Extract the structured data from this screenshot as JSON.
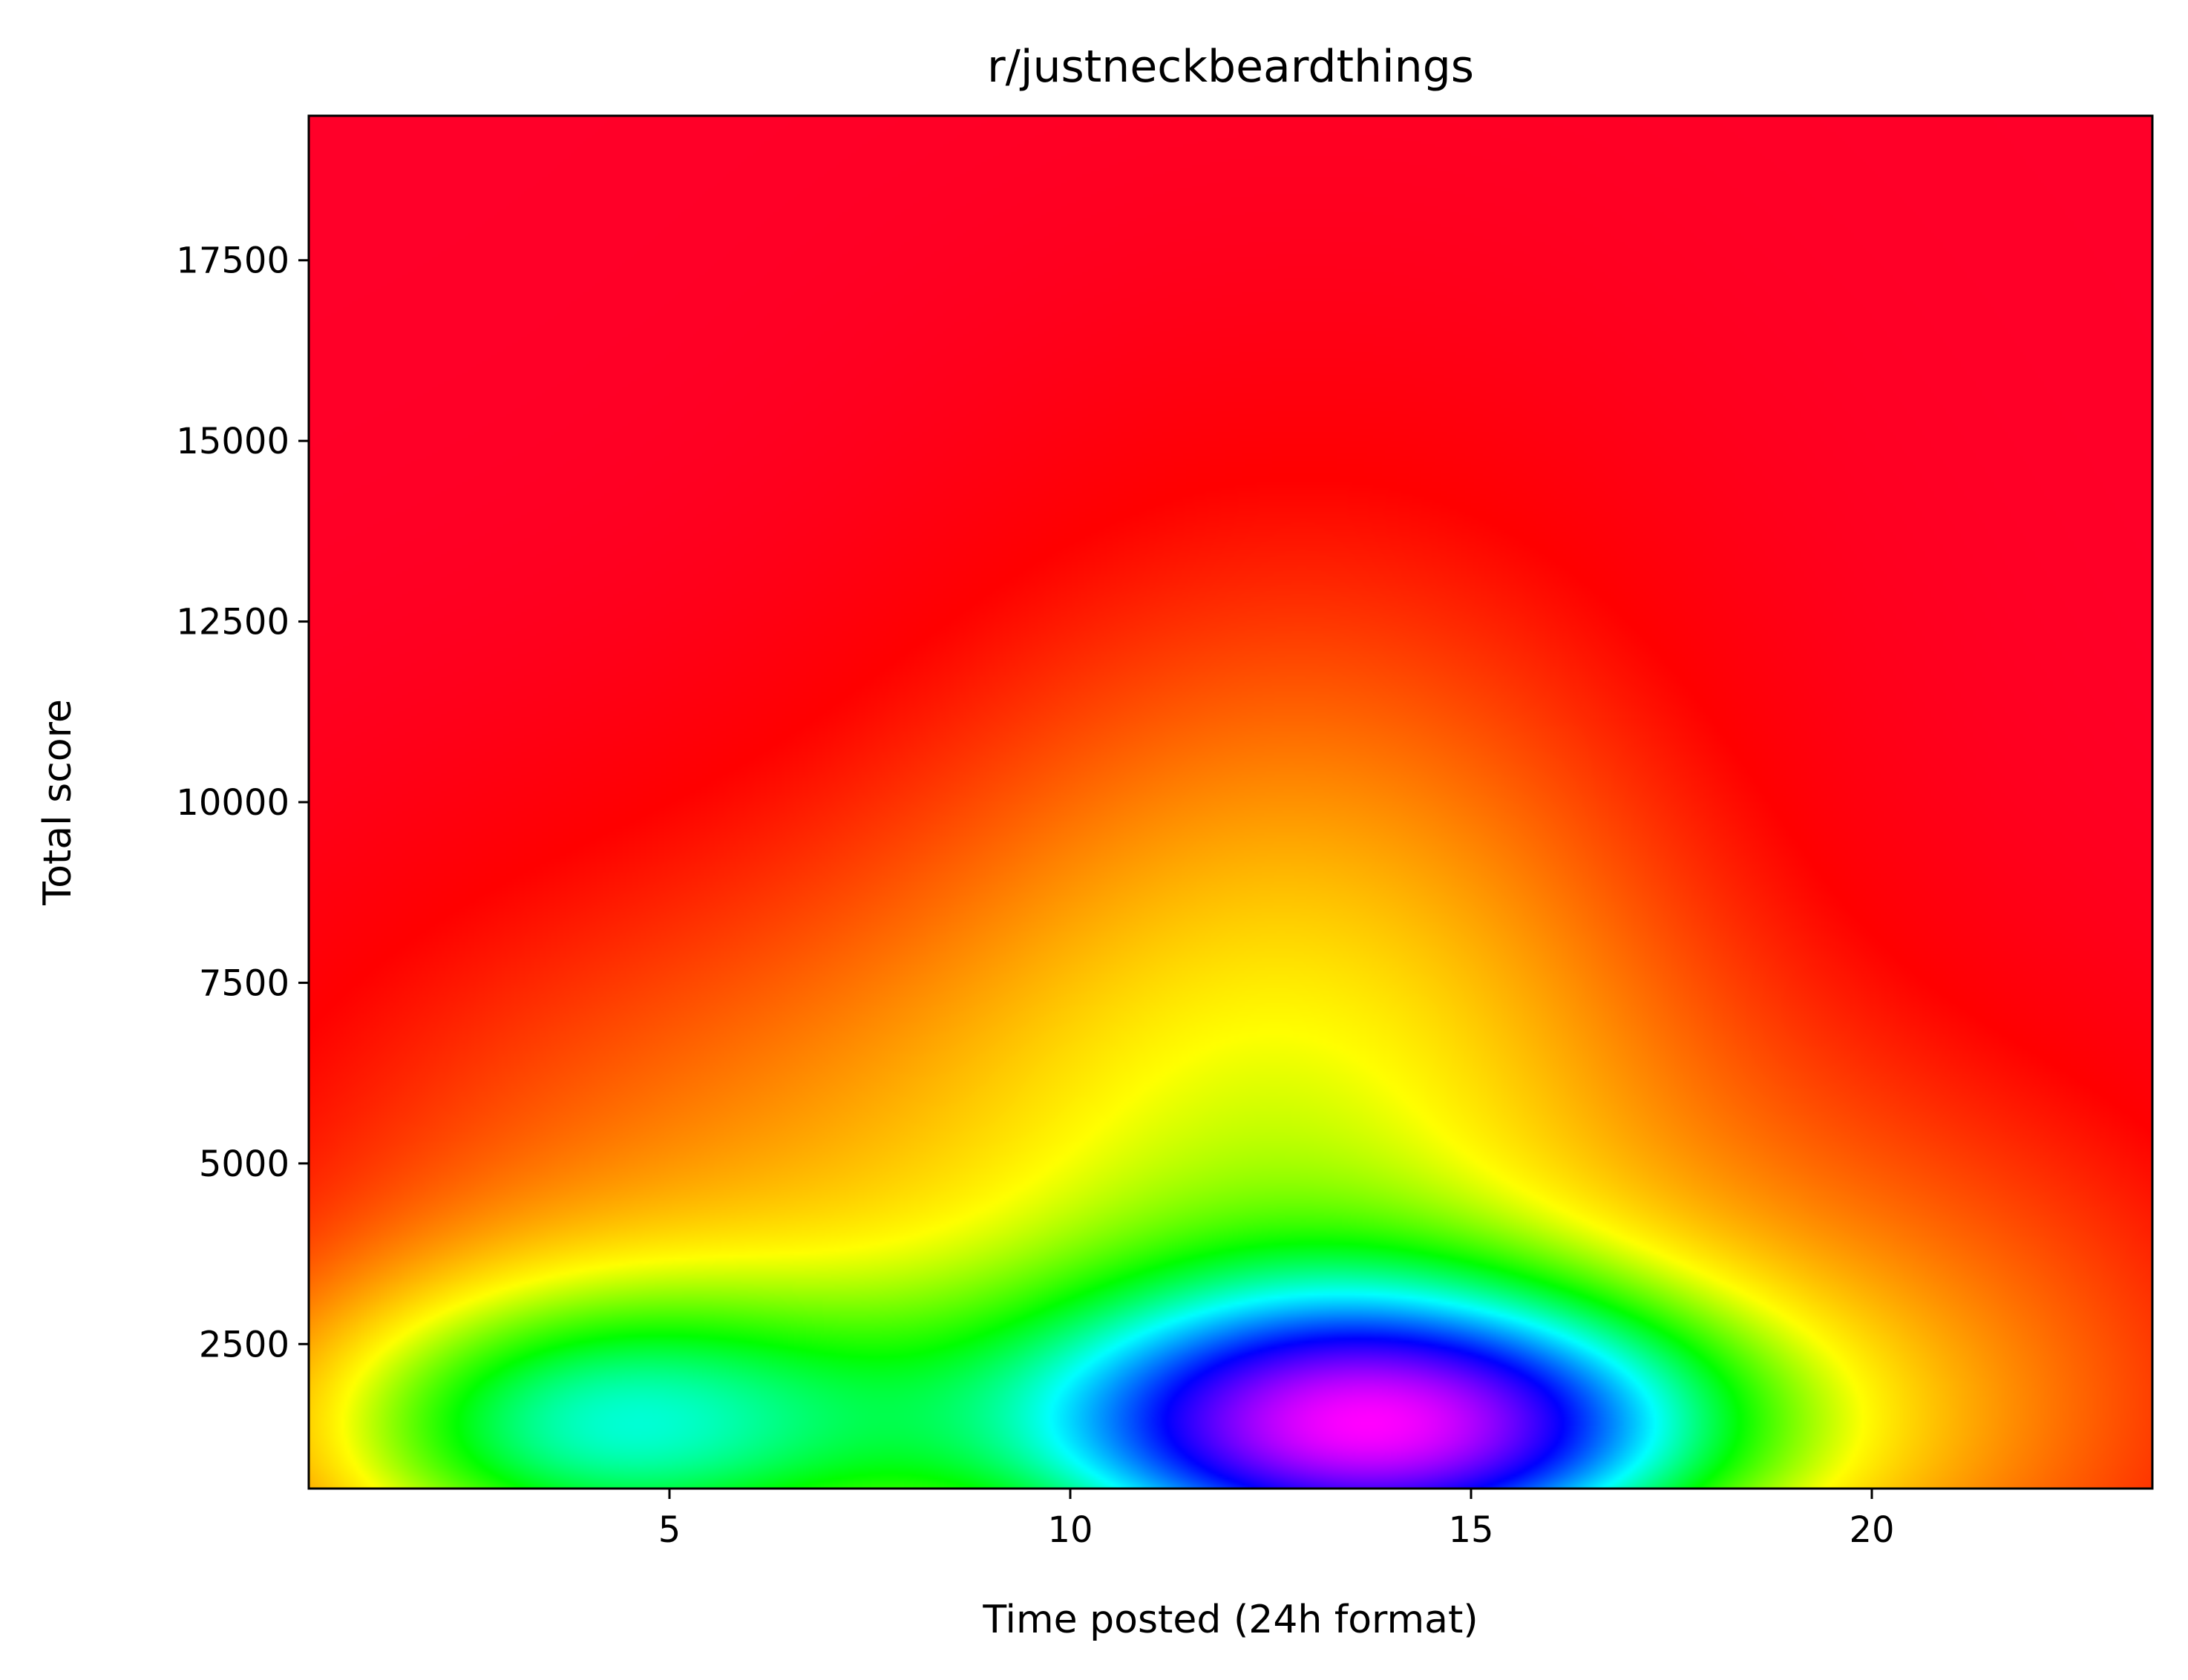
{
  "chart_data": {
    "type": "heatmap",
    "title": "r/justneckbeardthings",
    "xlabel": "Time posted (24h format)",
    "ylabel": "Total score",
    "xlim": [
      0.5,
      23.5
    ],
    "ylim": [
      500,
      19500
    ],
    "x_ticks": [
      5,
      10,
      15,
      20
    ],
    "y_ticks": [
      2500,
      5000,
      7500,
      10000,
      12500,
      15000,
      17500
    ],
    "colormap": "gist_rainbow_r",
    "colormap_stops": [
      "#ff0029",
      "#ff0000",
      "#ff8000",
      "#ffff00",
      "#00ff00",
      "#00ffff",
      "#0000ff",
      "#ff00ff"
    ],
    "grid": false,
    "legend": "none"
  }
}
